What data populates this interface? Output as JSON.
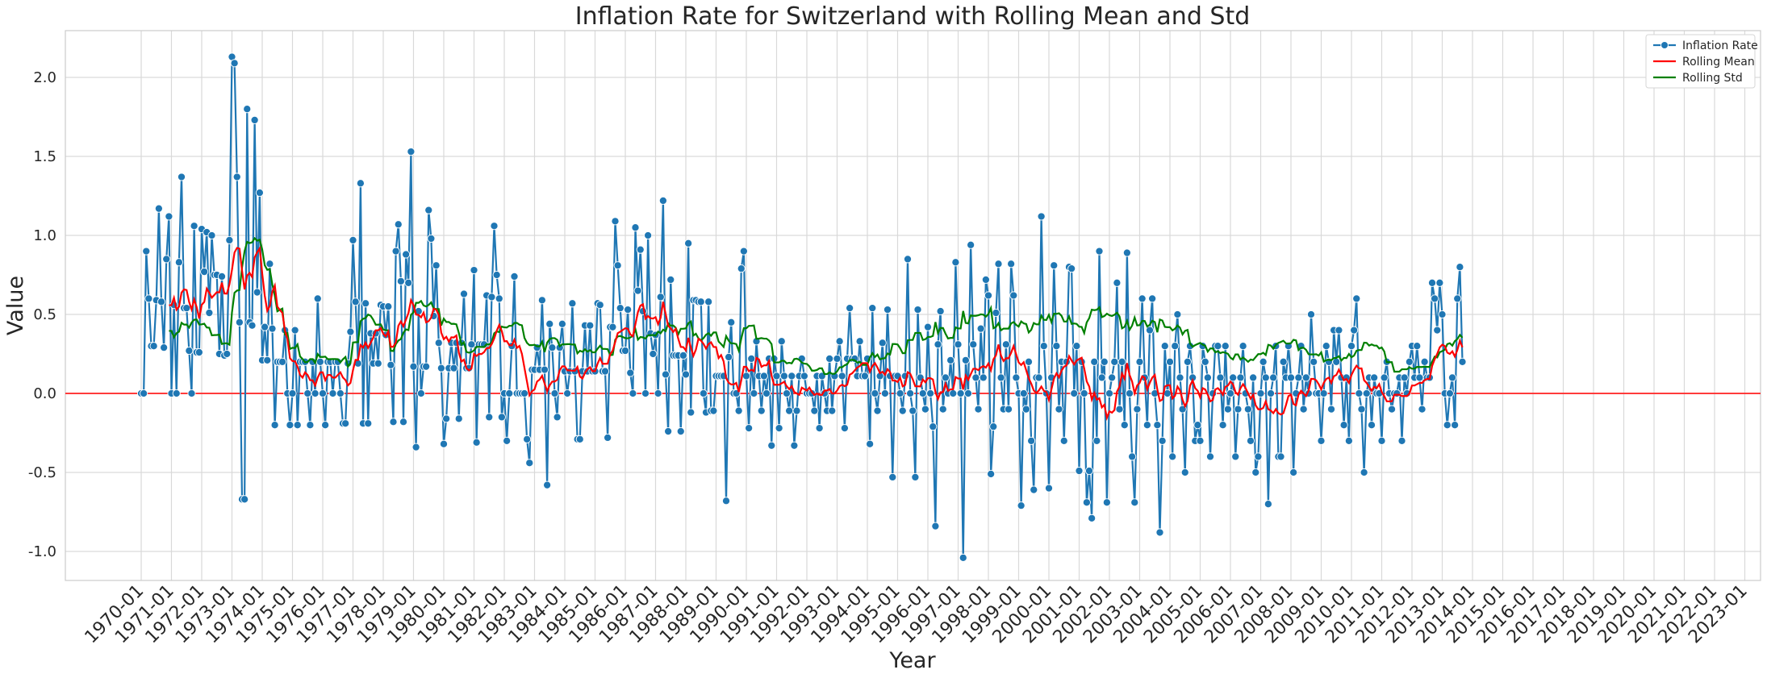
{
  "chart_data": {
    "type": "line",
    "title": "Inflation Rate for Switzerland with Rolling Mean and Std",
    "xlabel": "Year",
    "ylabel": "Value",
    "x_start": "1970-01",
    "x_end": "2023-03",
    "x_ticks": [
      "1970-01",
      "1971-01",
      "1972-01",
      "1973-01",
      "1974-01",
      "1975-01",
      "1976-01",
      "1977-01",
      "1978-01",
      "1979-01",
      "1980-01",
      "1981-01",
      "1982-01",
      "1983-01",
      "1984-01",
      "1985-01",
      "1986-01",
      "1987-01",
      "1988-01",
      "1989-01",
      "1990-01",
      "1991-01",
      "1992-01",
      "1993-01",
      "1994-01",
      "1995-01",
      "1996-01",
      "1997-01",
      "1998-01",
      "1999-01",
      "2000-01",
      "2001-01",
      "2002-01",
      "2003-01",
      "2004-01",
      "2005-01",
      "2006-01",
      "2007-01",
      "2008-01",
      "2009-01",
      "2010-01",
      "2011-01",
      "2012-01",
      "2013-01",
      "2014-01",
      "2015-01",
      "2016-01",
      "2017-01",
      "2018-01",
      "2019-01",
      "2020-01",
      "2021-01",
      "2022-01",
      "2023-01"
    ],
    "y_ticks": [
      "-1.0",
      "-0.5",
      "0.0",
      "0.5",
      "1.0",
      "1.5",
      "2.0"
    ],
    "ylim": [
      -1.2,
      2.3
    ],
    "grid": true,
    "legend_position": "top-right",
    "reference_line": {
      "y": 0.0,
      "color": "#ff3b3b"
    },
    "rolling_window": 12,
    "series": [
      {
        "name": "Inflation Rate",
        "color": "#1f77b4",
        "marker": "circle",
        "values": [
          0.0,
          0.0,
          0.9,
          0.6,
          0.3,
          0.3,
          0.59,
          1.17,
          0.58,
          0.29,
          0.85,
          1.12,
          0.0,
          0.56,
          0.0,
          0.83,
          1.37,
          0.54,
          0.54,
          0.27,
          0.0,
          1.06,
          0.26,
          0.26,
          1.04,
          0.77,
          1.02,
          0.51,
          1.0,
          0.75,
          0.75,
          0.25,
          0.74,
          0.24,
          0.25,
          0.97,
          2.13,
          2.09,
          1.37,
          0.45,
          -0.67,
          -0.67,
          1.8,
          0.45,
          0.43,
          1.73,
          0.64,
          1.27,
          0.21,
          0.42,
          0.21,
          0.82,
          0.41,
          -0.2,
          0.2,
          0.2,
          0.2,
          0.4,
          0.0,
          -0.2,
          0.0,
          0.4,
          -0.2,
          0.2,
          0.2,
          0.2,
          0.0,
          -0.2,
          0.2,
          0.0,
          0.6,
          0.2,
          0.0,
          -0.2,
          0.2,
          0.2,
          0.0,
          0.2,
          0.2,
          0.0,
          -0.19,
          -0.19,
          0.19,
          0.39,
          0.97,
          0.58,
          0.19,
          1.33,
          -0.19,
          0.57,
          -0.19,
          0.38,
          0.19,
          0.38,
          0.19,
          0.56,
          0.55,
          0.37,
          0.55,
          0.18,
          -0.18,
          0.9,
          1.07,
          0.71,
          -0.18,
          0.88,
          0.7,
          1.53,
          0.17,
          -0.34,
          0.52,
          0.0,
          0.17,
          0.17,
          1.16,
          0.98,
          0.49,
          0.81,
          0.32,
          0.16,
          -0.32,
          -0.16,
          0.16,
          0.32,
          0.16,
          0.32,
          -0.16,
          0.32,
          0.63,
          0.16,
          0.16,
          0.31,
          0.78,
          -0.31,
          0.31,
          0.31,
          0.31,
          0.62,
          -0.15,
          0.61,
          1.06,
          0.75,
          0.6,
          -0.15,
          0.0,
          -0.3,
          0.0,
          0.3,
          0.74,
          0.0,
          0.0,
          0.0,
          0.0,
          -0.29,
          -0.44,
          0.15,
          0.15,
          0.29,
          0.15,
          0.59,
          0.15,
          -0.58,
          0.44,
          0.29,
          0.0,
          -0.15,
          0.29,
          0.44,
          0.14,
          0.0,
          0.14,
          0.57,
          0.14,
          -0.29,
          -0.29,
          0.14,
          0.43,
          0.14,
          0.43,
          0.14,
          0.14,
          0.57,
          0.56,
          0.14,
          0.14,
          -0.28,
          0.42,
          0.42,
          1.09,
          0.81,
          0.54,
          0.27,
          0.27,
          0.53,
          0.13,
          0.0,
          1.05,
          0.65,
          0.91,
          0.52,
          0.0,
          1.0,
          0.38,
          0.25,
          0.37,
          0.0,
          0.61,
          1.22,
          0.12,
          -0.24,
          0.72,
          0.24,
          0.24,
          0.24,
          -0.24,
          0.24,
          0.12,
          0.95,
          -0.12,
          0.59,
          0.59,
          0.58,
          0.58,
          0.0,
          -0.12,
          0.58,
          -0.11,
          -0.11,
          0.11,
          0.11,
          0.11,
          0.11,
          -0.68,
          0.23,
          0.45,
          0.0,
          0.0,
          -0.11,
          0.79,
          0.9,
          0.11,
          -0.22,
          0.22,
          0.0,
          0.33,
          0.11,
          -0.11,
          0.11,
          0.0,
          0.22,
          -0.33,
          0.22,
          0.11,
          -0.22,
          0.33,
          0.11,
          0.0,
          -0.11,
          0.11,
          -0.33,
          -0.11,
          0.11,
          0.22,
          0.11,
          0.0,
          0.0,
          0.0,
          -0.11,
          0.11,
          -0.22,
          0.11,
          0.0,
          -0.11,
          0.22,
          -0.11,
          0.11,
          0.22,
          0.33,
          0.11,
          -0.22,
          0.22,
          0.54,
          0.22,
          0.22,
          0.11,
          0.33,
          0.11,
          0.11,
          0.22,
          -0.32,
          0.54,
          0.0,
          -0.11,
          0.11,
          0.32,
          0.0,
          0.53,
          0.11,
          -0.53,
          0.11,
          0.11,
          0.0,
          -0.11,
          0.11,
          0.85,
          0.0,
          -0.11,
          -0.53,
          0.53,
          0.1,
          0.0,
          -0.1,
          0.42,
          0.0,
          -0.21,
          -0.84,
          0.31,
          0.52,
          -0.1,
          0.1,
          0.0,
          0.21,
          0.0,
          0.83,
          0.31,
          0.0,
          -1.04,
          0.21,
          0.0,
          0.94,
          0.31,
          0.1,
          -0.1,
          0.41,
          0.1,
          0.72,
          0.62,
          -0.51,
          -0.21,
          0.51,
          0.82,
          0.1,
          -0.1,
          0.31,
          -0.1,
          0.82,
          0.62,
          0.1,
          0.0,
          -0.71,
          0.0,
          -0.1,
          0.2,
          -0.3,
          -0.61,
          0.1,
          0.1,
          1.12,
          0.3,
          0.0,
          -0.6,
          0.1,
          0.81,
          0.3,
          -0.1,
          0.2,
          -0.3,
          0.2,
          0.8,
          0.79,
          0.0,
          0.3,
          -0.49,
          0.2,
          0.0,
          -0.69,
          -0.49,
          -0.79,
          0.2,
          -0.3,
          0.9,
          0.1,
          0.2,
          -0.69,
          0.0,
          0.1,
          0.2,
          0.7,
          -0.1,
          0.2,
          -0.2,
          0.89,
          0.0,
          -0.4,
          -0.69,
          -0.1,
          0.2,
          0.6,
          0.1,
          -0.2,
          0.4,
          0.6,
          0.0,
          -0.2,
          -0.88,
          -0.3,
          0.3,
          0.0,
          0.2,
          -0.4,
          0.3,
          0.5,
          0.1,
          -0.1,
          -0.5,
          0.2,
          0.3,
          0.1,
          -0.3,
          -0.2,
          -0.3,
          0.3,
          0.2,
          0.1,
          -0.4,
          0.0,
          0.3,
          0.3,
          0.1,
          -0.2,
          0.3,
          -0.1,
          0.0,
          0.1,
          -0.4,
          -0.1,
          0.1,
          0.3,
          0.0,
          -0.1,
          -0.3,
          0.1,
          -0.5,
          -0.4,
          0.0,
          0.2,
          0.1,
          -0.7,
          0.0,
          0.1,
          0.3,
          -0.4,
          -0.4,
          0.2,
          0.1,
          0.3,
          0.1,
          -0.5,
          0.0,
          0.1,
          0.3,
          -0.1,
          0.1,
          0.0,
          0.5,
          0.2,
          0.0,
          0.0,
          -0.3,
          0.0,
          0.3,
          0.2,
          -0.1,
          0.4,
          0.2,
          0.4,
          0.1,
          -0.2,
          0.1,
          -0.3,
          0.3,
          0.4,
          0.6,
          0.0,
          -0.1,
          -0.5,
          0.0,
          0.1,
          -0.2,
          0.1,
          0.0,
          0.0,
          -0.3,
          0.1,
          0.2,
          0.0,
          -0.1,
          0.0,
          0.0,
          0.1,
          -0.3,
          0.1,
          0.0,
          0.2,
          0.3,
          0.1,
          0.3,
          0.1,
          -0.1,
          0.2,
          0.1,
          0.1,
          0.7,
          0.6,
          0.4,
          0.7,
          0.5,
          0.0,
          -0.2,
          0.0,
          0.1,
          -0.2,
          0.6,
          0.8,
          0.2
        ]
      },
      {
        "name": "Rolling Mean",
        "color": "#ff0000",
        "derived_from": "Inflation Rate",
        "statistic": "mean"
      },
      {
        "name": "Rolling Std",
        "color": "#008000",
        "derived_from": "Inflation Rate",
        "statistic": "std"
      }
    ]
  }
}
